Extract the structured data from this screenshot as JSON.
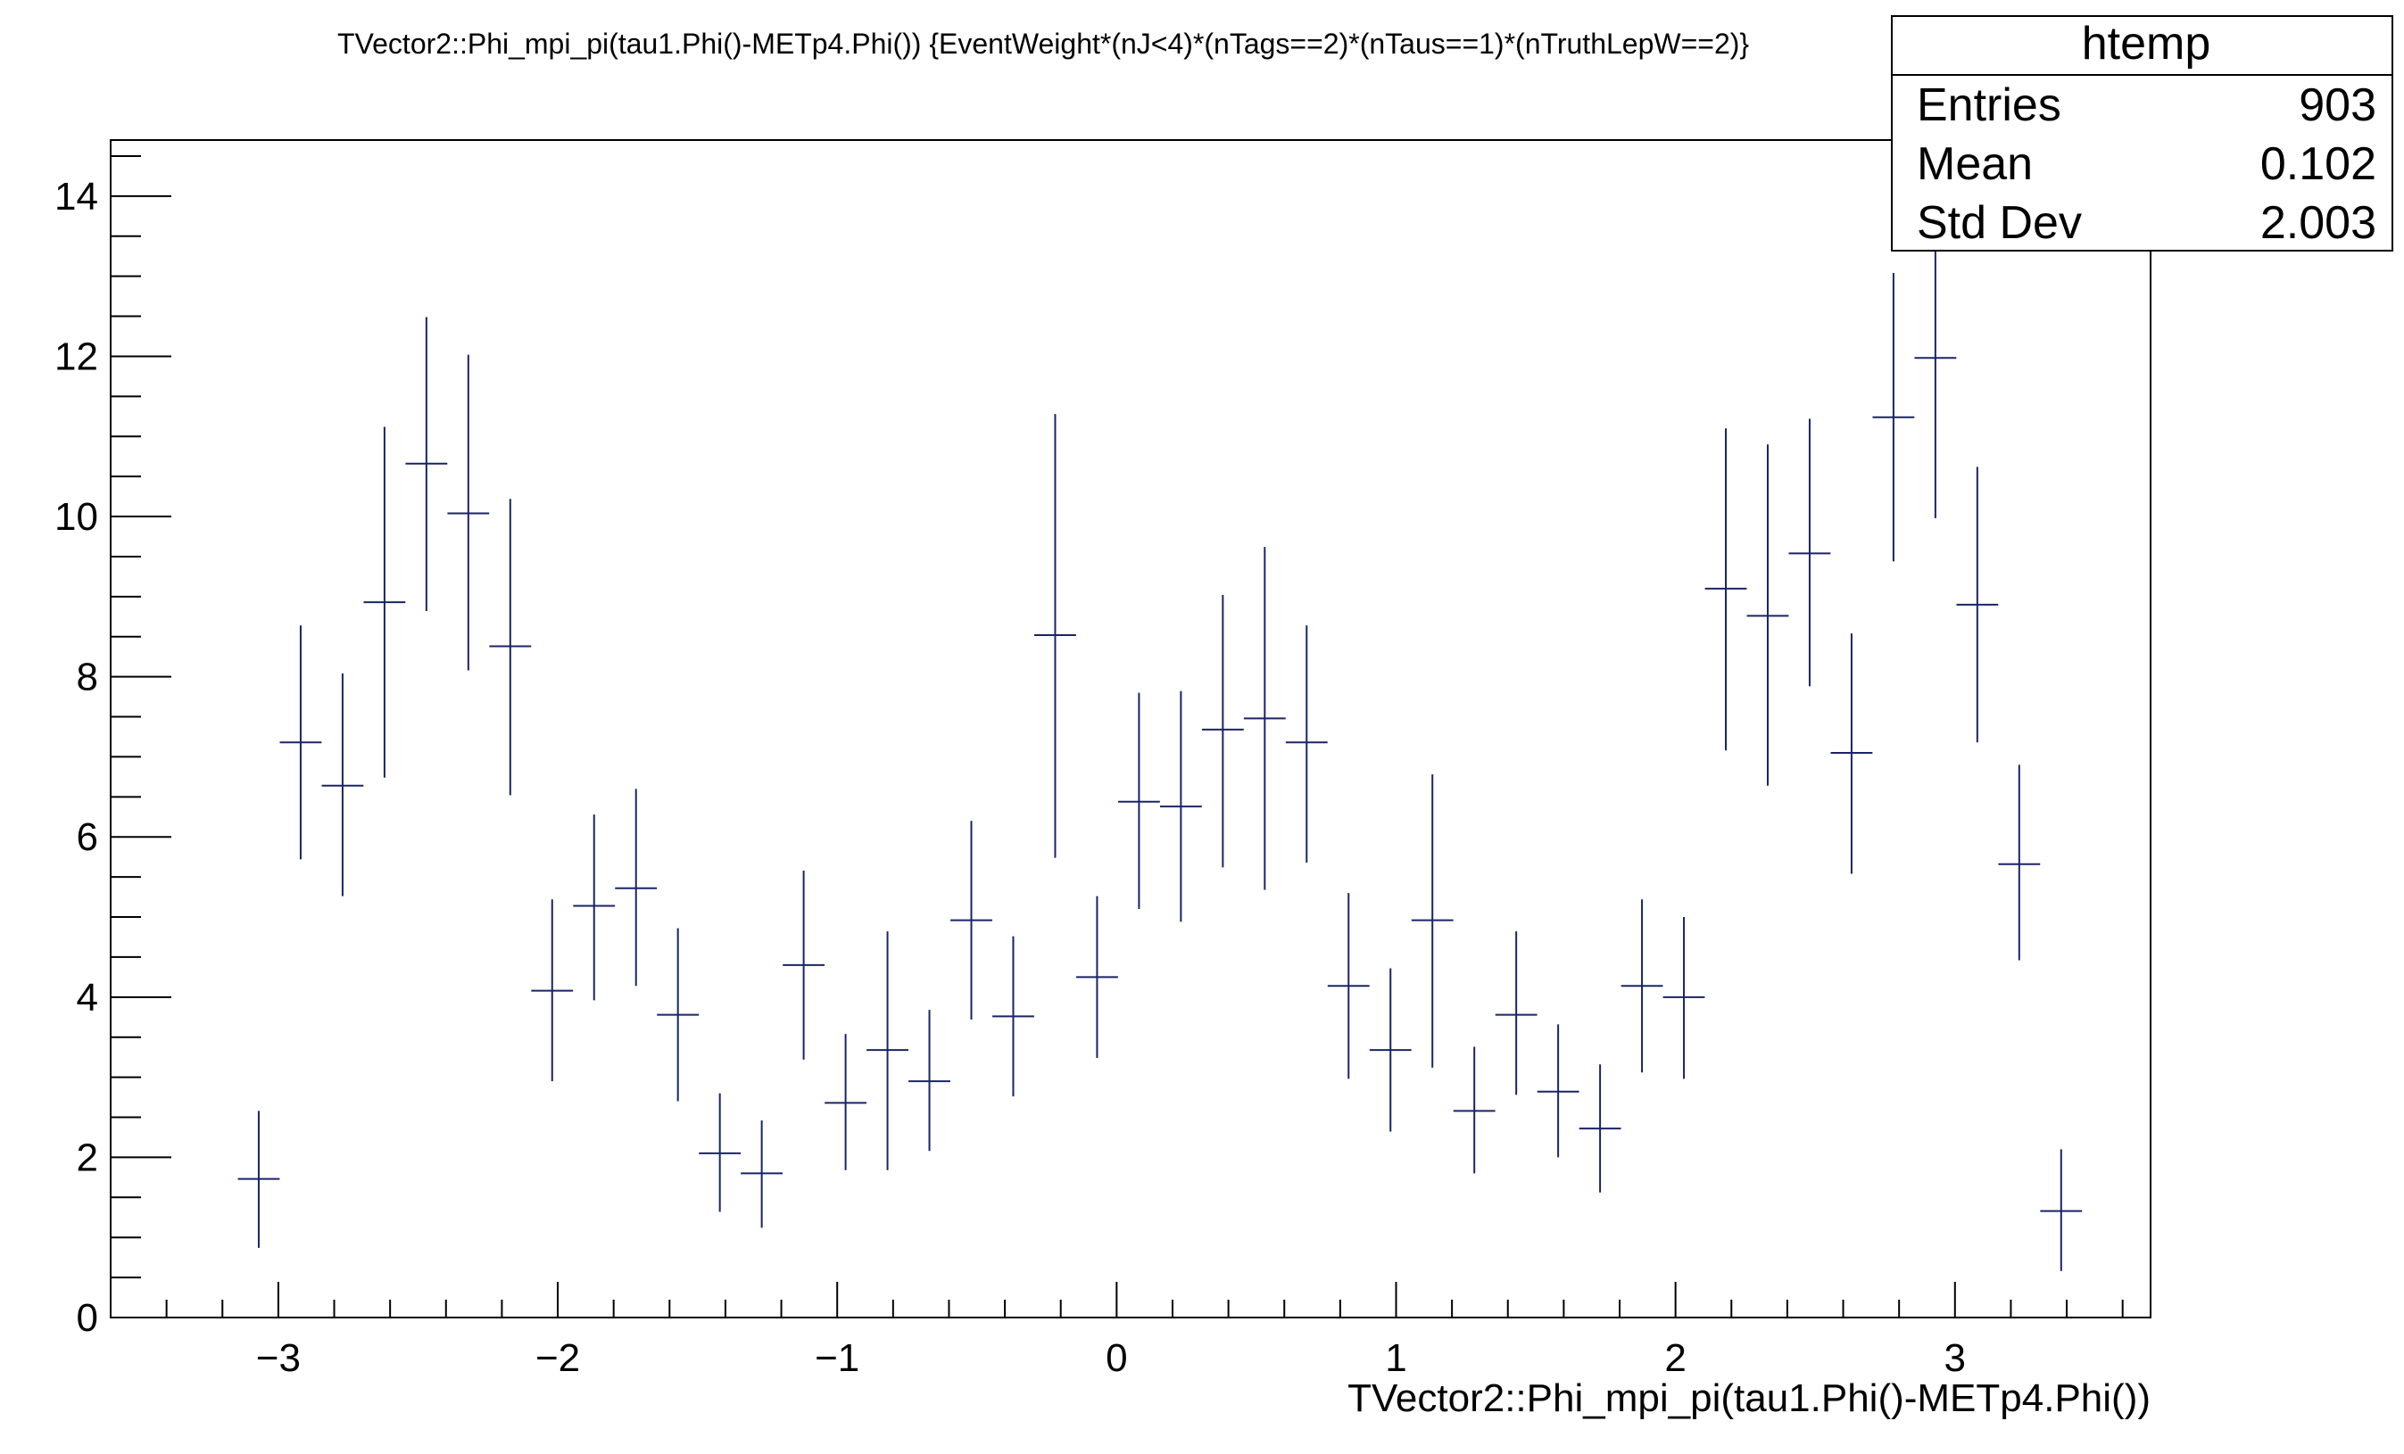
{
  "chart_data": {
    "type": "scatter",
    "title": "TVector2::Phi_mpi_pi(tau1.Phi()-METp4.Phi()) {EventWeight*(nJ<4)*(nTags==2)*(nTaus==1)*(nTruthLepW==2)}",
    "xlabel": "TVector2::Phi_mpi_pi(tau1.Phi()-METp4.Phi())",
    "ylabel": "",
    "xlim": [
      -3.6,
      3.7
    ],
    "ylim": [
      0,
      14.7
    ],
    "bin_width": 0.1496,
    "x_ticks": [
      -3,
      -2,
      -1,
      0,
      1,
      2,
      3
    ],
    "y_ticks": [
      0,
      2,
      4,
      6,
      8,
      10,
      12,
      14
    ],
    "tick_labels_x": [
      "−3",
      "−2",
      "−1",
      "0",
      "1",
      "2",
      "3"
    ],
    "tick_labels_y": [
      "0",
      "2",
      "4",
      "6",
      "8",
      "10",
      "12",
      "14"
    ],
    "color": "#1a2466",
    "points": [
      {
        "x": -3.07,
        "y": 1.73,
        "lo": 0.87,
        "hi": 2.58
      },
      {
        "x": -2.92,
        "y": 7.18,
        "lo": 5.72,
        "hi": 8.64
      },
      {
        "x": -2.77,
        "y": 6.64,
        "lo": 5.26,
        "hi": 8.04
      },
      {
        "x": -2.62,
        "y": 8.93,
        "lo": 6.74,
        "hi": 11.12
      },
      {
        "x": -2.47,
        "y": 10.66,
        "lo": 8.82,
        "hi": 12.49
      },
      {
        "x": -2.32,
        "y": 10.04,
        "lo": 8.08,
        "hi": 12.02
      },
      {
        "x": -2.17,
        "y": 8.38,
        "lo": 6.52,
        "hi": 10.22
      },
      {
        "x": -2.02,
        "y": 4.08,
        "lo": 2.95,
        "hi": 5.22
      },
      {
        "x": -1.87,
        "y": 5.14,
        "lo": 3.96,
        "hi": 6.28
      },
      {
        "x": -1.72,
        "y": 5.36,
        "lo": 4.14,
        "hi": 6.6
      },
      {
        "x": -1.57,
        "y": 3.78,
        "lo": 2.7,
        "hi": 4.86
      },
      {
        "x": -1.42,
        "y": 2.05,
        "lo": 1.32,
        "hi": 2.8
      },
      {
        "x": -1.27,
        "y": 1.8,
        "lo": 1.12,
        "hi": 2.46
      },
      {
        "x": -1.12,
        "y": 4.4,
        "lo": 3.22,
        "hi": 5.58
      },
      {
        "x": -0.97,
        "y": 2.68,
        "lo": 1.84,
        "hi": 3.54
      },
      {
        "x": -0.82,
        "y": 3.34,
        "lo": 1.84,
        "hi": 4.82
      },
      {
        "x": -0.67,
        "y": 2.95,
        "lo": 2.08,
        "hi": 3.84
      },
      {
        "x": -0.52,
        "y": 4.96,
        "lo": 3.72,
        "hi": 6.2
      },
      {
        "x": -0.37,
        "y": 3.76,
        "lo": 2.76,
        "hi": 4.76
      },
      {
        "x": -0.22,
        "y": 8.52,
        "lo": 5.74,
        "hi": 11.28
      },
      {
        "x": -0.07,
        "y": 4.25,
        "lo": 3.24,
        "hi": 5.26
      },
      {
        "x": 0.08,
        "y": 6.44,
        "lo": 5.1,
        "hi": 7.8
      },
      {
        "x": 0.23,
        "y": 6.38,
        "lo": 4.94,
        "hi": 7.82
      },
      {
        "x": 0.38,
        "y": 7.34,
        "lo": 5.62,
        "hi": 9.02
      },
      {
        "x": 0.53,
        "y": 7.48,
        "lo": 5.34,
        "hi": 9.62
      },
      {
        "x": 0.68,
        "y": 7.18,
        "lo": 5.68,
        "hi": 8.64
      },
      {
        "x": 0.83,
        "y": 4.14,
        "lo": 2.98,
        "hi": 5.3
      },
      {
        "x": 0.98,
        "y": 3.34,
        "lo": 2.32,
        "hi": 4.36
      },
      {
        "x": 1.13,
        "y": 4.96,
        "lo": 3.12,
        "hi": 6.78
      },
      {
        "x": 1.28,
        "y": 2.58,
        "lo": 1.8,
        "hi": 3.38
      },
      {
        "x": 1.43,
        "y": 3.78,
        "lo": 2.78,
        "hi": 4.82
      },
      {
        "x": 1.58,
        "y": 2.82,
        "lo": 2.0,
        "hi": 3.66
      },
      {
        "x": 1.73,
        "y": 2.36,
        "lo": 1.56,
        "hi": 3.16
      },
      {
        "x": 1.88,
        "y": 4.14,
        "lo": 3.06,
        "hi": 5.22
      },
      {
        "x": 2.03,
        "y": 4.0,
        "lo": 2.98,
        "hi": 5.0
      },
      {
        "x": 2.18,
        "y": 9.1,
        "lo": 7.08,
        "hi": 11.1
      },
      {
        "x": 2.33,
        "y": 8.76,
        "lo": 6.64,
        "hi": 10.9
      },
      {
        "x": 2.48,
        "y": 9.54,
        "lo": 7.88,
        "hi": 11.22
      },
      {
        "x": 2.63,
        "y": 7.05,
        "lo": 5.54,
        "hi": 8.54
      },
      {
        "x": 2.78,
        "y": 11.24,
        "lo": 9.44,
        "hi": 13.04
      },
      {
        "x": 2.93,
        "y": 11.98,
        "lo": 9.98,
        "hi": 14.02
      },
      {
        "x": 3.08,
        "y": 8.9,
        "lo": 7.18,
        "hi": 10.62
      },
      {
        "x": 3.23,
        "y": 5.66,
        "lo": 4.46,
        "hi": 6.9
      },
      {
        "x": 3.38,
        "y": 1.33,
        "lo": 0.58,
        "hi": 2.1
      }
    ],
    "stats_box": {
      "name": "htemp",
      "rows": [
        {
          "label": "Entries",
          "value": "903"
        },
        {
          "label": "Mean",
          "value": "0.102"
        },
        {
          "label": "Std Dev",
          "value": "2.003"
        }
      ]
    }
  }
}
